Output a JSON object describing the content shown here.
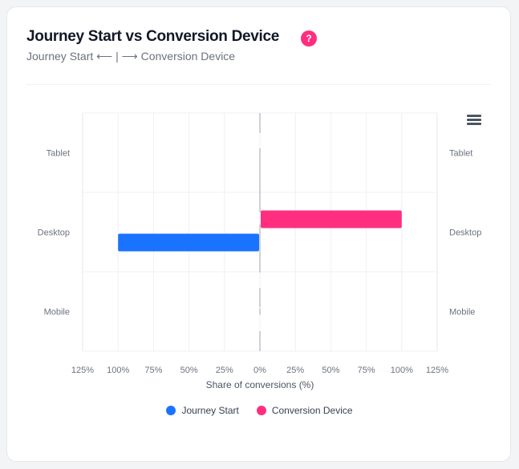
{
  "header": {
    "title": "Journey Start vs Conversion Device",
    "subtitle": "Journey Start ⟵ | ⟶ Conversion Device",
    "help_label": "?"
  },
  "chart_data": {
    "type": "bar",
    "orientation": "horizontal-diverging",
    "categories": [
      "Tablet",
      "Desktop",
      "Mobile"
    ],
    "series": [
      {
        "name": "Journey Start",
        "values": [
          0,
          100,
          0
        ],
        "color": "#1a73ff",
        "direction": "left"
      },
      {
        "name": "Conversion Device",
        "values": [
          0,
          100,
          0
        ],
        "color": "#ff2e7e",
        "direction": "right"
      }
    ],
    "xlabel": "Share of conversions (%)",
    "xlim": [
      -125,
      125
    ],
    "xticks": [
      "125%",
      "100%",
      "75%",
      "50%",
      "25%",
      "0%",
      "25%",
      "50%",
      "75%",
      "100%",
      "125%"
    ],
    "grid": true,
    "legend": "bottom"
  }
}
